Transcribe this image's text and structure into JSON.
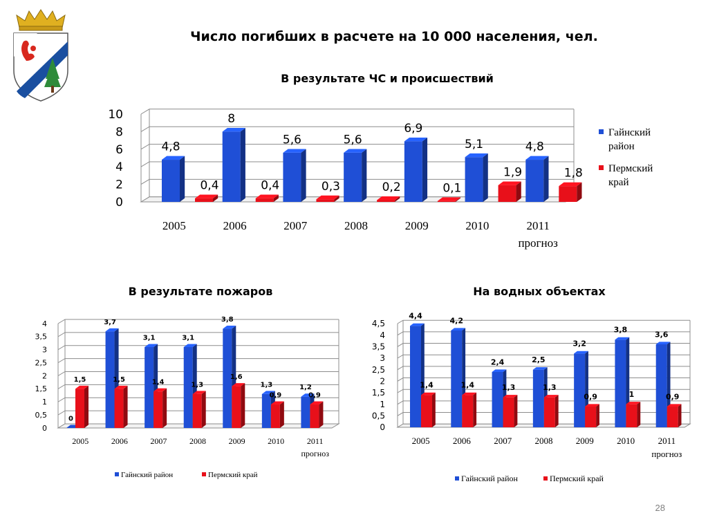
{
  "header": {
    "title": "Число погибших в расчете на 10 000 населения, чел.",
    "page_number": "28"
  },
  "colors": {
    "blue": "#1f4fd6",
    "red": "#e8101a"
  },
  "chart_data": [
    {
      "type": "bar",
      "title": "В результате ЧС и происшествий",
      "categories": [
        "2005",
        "2006",
        "2007",
        "2008",
        "2009",
        "2010",
        "2011"
      ],
      "category_notes": [
        "",
        "",
        "",
        "",
        "",
        "",
        "прогноз"
      ],
      "series": [
        {
          "name": "Гайнский район",
          "values": [
            4.8,
            8,
            5.6,
            5.6,
            6.9,
            5.1,
            4.8
          ],
          "labels": [
            "4,8",
            "8",
            "5,6",
            "5,6",
            "6,9",
            "5,1",
            "4,8"
          ]
        },
        {
          "name": "Пермский край",
          "values": [
            0.4,
            0.4,
            0.3,
            0.2,
            0.1,
            1.9,
            1.8
          ],
          "labels": [
            "0,4",
            "0,4",
            "0,3",
            "0,2",
            "0,1",
            "1,9",
            "1,8"
          ]
        }
      ],
      "ylim": [
        0,
        10
      ],
      "yticks": [
        "0",
        "2",
        "4",
        "6",
        "8",
        "10"
      ],
      "legend": "right"
    },
    {
      "type": "bar",
      "title": "В результате пожаров",
      "categories": [
        "2005",
        "2006",
        "2007",
        "2008",
        "2009",
        "2010",
        "2011"
      ],
      "category_notes": [
        "",
        "",
        "",
        "",
        "",
        "",
        "прогноз"
      ],
      "series": [
        {
          "name": "Гайнский район",
          "values": [
            0,
            3.7,
            3.1,
            3.1,
            3.8,
            1.3,
            1.2
          ],
          "labels": [
            "0",
            "3,7",
            "3,1",
            "3,1",
            "3,8",
            "1,3",
            "1,2"
          ]
        },
        {
          "name": "Пермский край",
          "values": [
            1.5,
            1.5,
            1.4,
            1.3,
            1.6,
            0.9,
            0.9
          ],
          "labels": [
            "1,5",
            "1,5",
            "1,4",
            "1,3",
            "1,6",
            "0,9",
            "0,9"
          ]
        }
      ],
      "ylim": [
        0,
        4
      ],
      "yticks": [
        "0",
        "0,5",
        "1",
        "1,5",
        "2",
        "2,5",
        "3",
        "3,5",
        "4"
      ],
      "legend": "bottom"
    },
    {
      "type": "bar",
      "title": "На водных объектах",
      "categories": [
        "2005",
        "2006",
        "2007",
        "2008",
        "2009",
        "2010",
        "2011"
      ],
      "category_notes": [
        "",
        "",
        "",
        "",
        "",
        "",
        "прогноз"
      ],
      "series": [
        {
          "name": "Гайнский район",
          "values": [
            4.4,
            4.2,
            2.4,
            2.5,
            3.2,
            3.8,
            3.6
          ],
          "labels": [
            "4,4",
            "4,2",
            "2,4",
            "2,5",
            "3,2",
            "3,8",
            "3,6"
          ]
        },
        {
          "name": "Пермский край",
          "values": [
            1.4,
            1.4,
            1.3,
            1.3,
            0.9,
            1,
            0.9
          ],
          "labels": [
            "1,4",
            "1,4",
            "1,3",
            "1,3",
            "0,9",
            "1",
            "0,9"
          ]
        }
      ],
      "ylim": [
        0,
        4.5
      ],
      "yticks": [
        "0",
        "0,5",
        "1",
        "1,5",
        "2",
        "2,5",
        "3",
        "3,5",
        "4",
        "4,5"
      ],
      "legend": "bottom"
    }
  ]
}
